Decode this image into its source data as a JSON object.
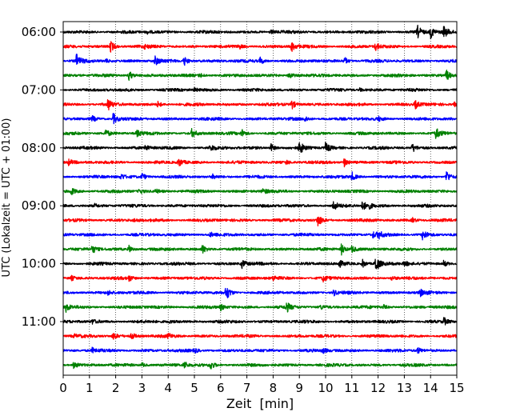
{
  "chart_data": {
    "type": "line",
    "chart_style": "helicorder (seismogram drum plot)",
    "xlabel": "Zeit  [min]",
    "ylabel": "UTC (Lokalzeit = UTC + 01:00)",
    "xlim": [
      0,
      15
    ],
    "x_ticks": [
      0,
      1,
      2,
      3,
      4,
      5,
      6,
      7,
      8,
      9,
      10,
      11,
      12,
      13,
      14,
      15
    ],
    "x_tick_labels": [
      "0",
      "1",
      "2",
      "3",
      "4",
      "5",
      "6",
      "7",
      "8",
      "9",
      "10",
      "11",
      "12",
      "13",
      "14",
      "15"
    ],
    "y_tick_labels": [
      "06:00",
      "07:00",
      "08:00",
      "09:00",
      "10:00",
      "11:00"
    ],
    "x_grid": "dotted vertical lines every minute",
    "trace_interval_min": 15,
    "line_colors": [
      "#000000",
      "#ff0000",
      "#0000ff",
      "#008000"
    ],
    "series": [
      {
        "start": "06:00",
        "color": "#000000",
        "events": [
          [
            13.5,
            0.9
          ],
          [
            14.0,
            0.8
          ],
          [
            14.5,
            0.8
          ],
          [
            3.2,
            0.2
          ],
          [
            7.9,
            0.2
          ]
        ]
      },
      {
        "start": "06:15",
        "color": "#ff0000",
        "events": [
          [
            1.8,
            0.8
          ],
          [
            8.7,
            0.7
          ],
          [
            11.9,
            0.6
          ],
          [
            6.7,
            0.3
          ],
          [
            3.1,
            0.2
          ]
        ]
      },
      {
        "start": "06:30",
        "color": "#0000ff",
        "events": [
          [
            0.5,
            0.9
          ],
          [
            3.5,
            0.6
          ],
          [
            4.6,
            0.7
          ],
          [
            7.5,
            0.5
          ],
          [
            10.7,
            0.6
          ],
          [
            1.6,
            0.3
          ]
        ]
      },
      {
        "start": "06:45",
        "color": "#008000",
        "events": [
          [
            2.5,
            0.7
          ],
          [
            8.6,
            0.6
          ],
          [
            14.6,
            0.8
          ],
          [
            5.2,
            0.3
          ]
        ]
      },
      {
        "start": "07:00",
        "color": "#000000",
        "events": [
          [
            5.0,
            0.2
          ],
          [
            11.3,
            0.2
          ]
        ]
      },
      {
        "start": "07:15",
        "color": "#ff0000",
        "events": [
          [
            1.7,
            0.8
          ],
          [
            8.7,
            0.7
          ],
          [
            13.4,
            0.6
          ],
          [
            3.6,
            0.4
          ],
          [
            14.9,
            0.3
          ]
        ]
      },
      {
        "start": "07:30",
        "color": "#0000ff",
        "events": [
          [
            1.1,
            0.4
          ],
          [
            1.9,
            0.8
          ],
          [
            9.2,
            0.4
          ],
          [
            12.0,
            0.3
          ]
        ]
      },
      {
        "start": "07:45",
        "color": "#008000",
        "events": [
          [
            1.6,
            0.6
          ],
          [
            2.8,
            0.5
          ],
          [
            4.9,
            0.6
          ],
          [
            6.8,
            0.5
          ],
          [
            14.2,
            0.7
          ]
        ]
      },
      {
        "start": "08:00",
        "color": "#000000",
        "events": [
          [
            5.6,
            0.5
          ],
          [
            7.9,
            0.6
          ],
          [
            9.0,
            0.9
          ],
          [
            10.0,
            0.8
          ],
          [
            13.3,
            0.6
          ],
          [
            3.1,
            0.4
          ]
        ]
      },
      {
        "start": "08:15",
        "color": "#ff0000",
        "events": [
          [
            4.4,
            0.6
          ],
          [
            10.7,
            0.6
          ],
          [
            0.2,
            0.4
          ],
          [
            8.5,
            0.3
          ]
        ]
      },
      {
        "start": "08:30",
        "color": "#0000ff",
        "events": [
          [
            2.2,
            0.4
          ],
          [
            3.0,
            0.5
          ],
          [
            11.0,
            0.6
          ],
          [
            14.6,
            0.9
          ],
          [
            5.7,
            0.3
          ]
        ]
      },
      {
        "start": "08:45",
        "color": "#008000",
        "events": [
          [
            0.3,
            0.5
          ],
          [
            2.9,
            0.4
          ],
          [
            7.6,
            0.4
          ],
          [
            3.5,
            0.3
          ]
        ]
      },
      {
        "start": "09:00",
        "color": "#000000",
        "events": [
          [
            10.3,
            0.7
          ],
          [
            11.4,
            0.7
          ],
          [
            11.6,
            0.5
          ],
          [
            1.2,
            0.2
          ]
        ]
      },
      {
        "start": "09:15",
        "color": "#ff0000",
        "events": [
          [
            9.7,
            0.9
          ],
          [
            2.7,
            0.2
          ],
          [
            13.3,
            0.3
          ]
        ]
      },
      {
        "start": "09:30",
        "color": "#0000ff",
        "events": [
          [
            12.0,
            0.5
          ],
          [
            13.7,
            0.8
          ],
          [
            11.8,
            0.4
          ],
          [
            5.6,
            0.3
          ]
        ]
      },
      {
        "start": "09:45",
        "color": "#008000",
        "events": [
          [
            1.1,
            0.6
          ],
          [
            2.5,
            0.5
          ],
          [
            5.3,
            0.6
          ],
          [
            10.6,
            0.8
          ],
          [
            11.0,
            0.5
          ]
        ]
      },
      {
        "start": "10:00",
        "color": "#000000",
        "events": [
          [
            11.9,
            1.3
          ],
          [
            11.4,
            0.6
          ],
          [
            10.5,
            0.5
          ],
          [
            6.8,
            0.6
          ],
          [
            13.0,
            0.4
          ],
          [
            14.5,
            0.5
          ]
        ]
      },
      {
        "start": "10:15",
        "color": "#ff0000",
        "events": [
          [
            0.3,
            0.3
          ],
          [
            2.5,
            0.4
          ],
          [
            8.0,
            0.3
          ],
          [
            9.9,
            0.4
          ],
          [
            12.5,
            0.3
          ]
        ]
      },
      {
        "start": "10:30",
        "color": "#0000ff",
        "events": [
          [
            6.2,
            1.1
          ],
          [
            1.7,
            0.3
          ],
          [
            10.3,
            0.4
          ],
          [
            13.6,
            0.5
          ]
        ]
      },
      {
        "start": "10:45",
        "color": "#008000",
        "events": [
          [
            0.1,
            0.6
          ],
          [
            6.0,
            0.4
          ],
          [
            8.5,
            0.7
          ],
          [
            12.2,
            0.3
          ],
          [
            9.8,
            0.3
          ]
        ]
      },
      {
        "start": "11:00",
        "color": "#000000",
        "events": [
          [
            1.1,
            0.3
          ],
          [
            14.5,
            0.5
          ],
          [
            4.0,
            0.2
          ]
        ]
      },
      {
        "start": "11:15",
        "color": "#ff0000",
        "events": [
          [
            1.9,
            0.5
          ],
          [
            2.6,
            0.5
          ],
          [
            4.0,
            0.3
          ],
          [
            0.4,
            0.2
          ]
        ]
      },
      {
        "start": "11:30",
        "color": "#0000ff",
        "events": [
          [
            1.1,
            0.3
          ],
          [
            5.0,
            0.3
          ],
          [
            13.5,
            0.4
          ],
          [
            9.9,
            0.3
          ]
        ]
      },
      {
        "start": "11:45",
        "color": "#008000",
        "events": [
          [
            0.4,
            0.5
          ],
          [
            4.6,
            0.5
          ],
          [
            5.6,
            0.6
          ],
          [
            3.0,
            0.3
          ]
        ]
      }
    ]
  }
}
